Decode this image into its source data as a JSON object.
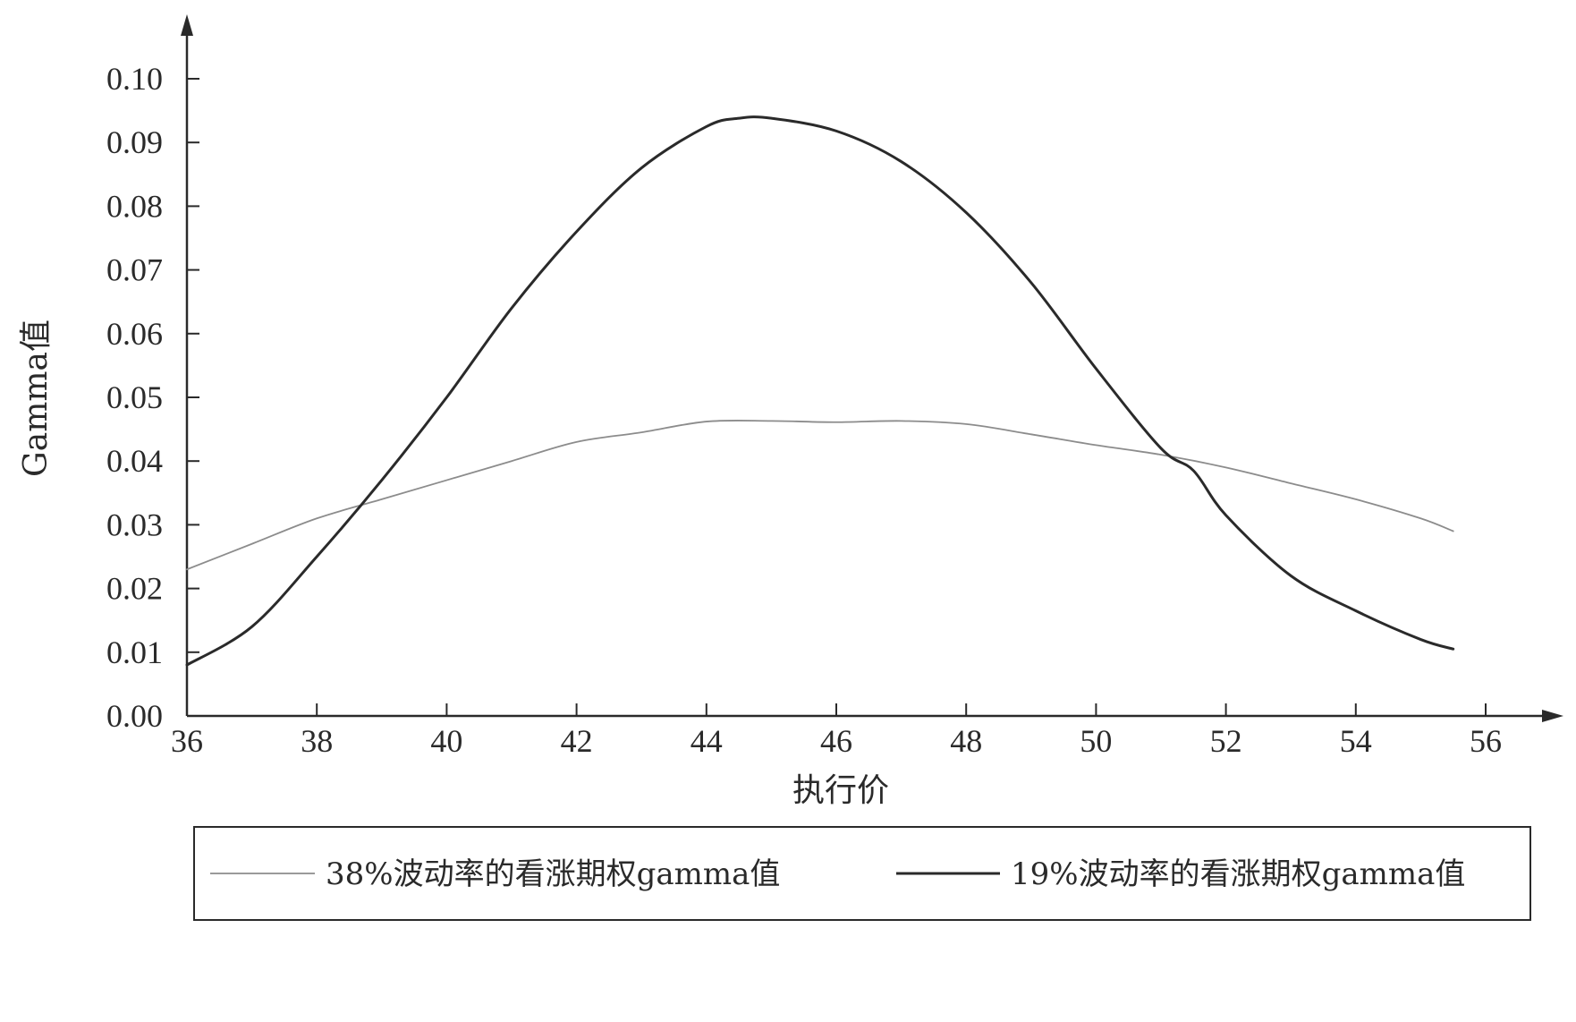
{
  "chart_data": {
    "type": "line",
    "xlabel": "执行价",
    "ylabel": "Gamma值",
    "xlim": [
      36,
      58
    ],
    "ylim": [
      0,
      0.105
    ],
    "x_ticks": [
      "36",
      "38",
      "40",
      "42",
      "44",
      "46",
      "48",
      "50",
      "52",
      "54",
      "56"
    ],
    "y_ticks": [
      "0.00",
      "0.01",
      "0.02",
      "0.03",
      "0.04",
      "0.05",
      "0.06",
      "0.07",
      "0.08",
      "0.09",
      "0.10"
    ],
    "x_tick_values": [
      36,
      38,
      40,
      42,
      44,
      46,
      48,
      50,
      52,
      54,
      56
    ],
    "y_tick_values": [
      0,
      0.01,
      0.02,
      0.03,
      0.04,
      0.05,
      0.06,
      0.07,
      0.08,
      0.09,
      0.1
    ],
    "legend_position": "bottom",
    "series": [
      {
        "name": "38%波动率的看涨期权gamma值",
        "color": "#8c8c8c",
        "style": "thin",
        "x": [
          36,
          37,
          38,
          39,
          40,
          41,
          42,
          43,
          44,
          45,
          46,
          47,
          48,
          49,
          50,
          51,
          52,
          53,
          54,
          55,
          55.5
        ],
        "y": [
          0.023,
          0.027,
          0.031,
          0.034,
          0.037,
          0.04,
          0.043,
          0.0445,
          0.0462,
          0.0463,
          0.0461,
          0.0463,
          0.0458,
          0.0442,
          0.0425,
          0.041,
          0.039,
          0.0365,
          0.034,
          0.031,
          0.029
        ]
      },
      {
        "name": "19%波动率的看涨期权gamma值",
        "color": "#2a2a2a",
        "style": "thick",
        "x": [
          36,
          37,
          38,
          39,
          40,
          41,
          42,
          43,
          44,
          44.5,
          45,
          46,
          47,
          48,
          49,
          50,
          51,
          51.5,
          52,
          53,
          54,
          55,
          55.5
        ],
        "y": [
          0.008,
          0.014,
          0.025,
          0.037,
          0.05,
          0.064,
          0.076,
          0.086,
          0.0925,
          0.0938,
          0.0938,
          0.0918,
          0.087,
          0.079,
          0.068,
          0.0545,
          0.042,
          0.0385,
          0.0315,
          0.022,
          0.0165,
          0.012,
          0.0105
        ]
      }
    ]
  }
}
